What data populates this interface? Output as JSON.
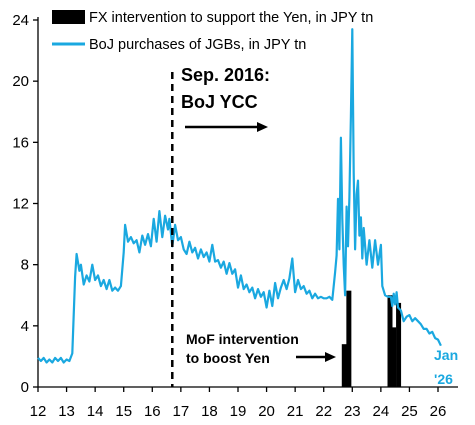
{
  "chart_data": {
    "type": "line",
    "x_ticks": [
      12,
      13,
      14,
      15,
      16,
      17,
      18,
      19,
      20,
      21,
      22,
      23,
      24,
      25,
      26
    ],
    "y_ticks": [
      0,
      4,
      8,
      12,
      16,
      20,
      24
    ],
    "xlim": [
      12,
      26.7
    ],
    "ylim": [
      0,
      24
    ],
    "grid": false,
    "legend_position": "top-left",
    "colors": {
      "boj": "#1aa8e0",
      "fx": "#000000"
    },
    "series": [
      {
        "name": "BoJ purchases of JGBs, in JPY tn",
        "type": "line",
        "points": [
          [
            12.0,
            1.9
          ],
          [
            12.1,
            1.7
          ],
          [
            12.2,
            1.9
          ],
          [
            12.3,
            1.6
          ],
          [
            12.4,
            1.8
          ],
          [
            12.5,
            1.6
          ],
          [
            12.6,
            1.9
          ],
          [
            12.7,
            1.7
          ],
          [
            12.8,
            1.9
          ],
          [
            12.9,
            1.6
          ],
          [
            13.0,
            1.8
          ],
          [
            13.1,
            1.7
          ],
          [
            13.2,
            2.2
          ],
          [
            13.3,
            7.2
          ],
          [
            13.35,
            8.7
          ],
          [
            13.45,
            7.6
          ],
          [
            13.5,
            8.0
          ],
          [
            13.6,
            6.7
          ],
          [
            13.7,
            7.3
          ],
          [
            13.8,
            6.9
          ],
          [
            13.9,
            8.0
          ],
          [
            14.0,
            7.0
          ],
          [
            14.1,
            7.3
          ],
          [
            14.2,
            6.6
          ],
          [
            14.3,
            7.0
          ],
          [
            14.4,
            6.4
          ],
          [
            14.5,
            7.0
          ],
          [
            14.6,
            6.3
          ],
          [
            14.7,
            6.5
          ],
          [
            14.8,
            6.3
          ],
          [
            14.9,
            6.6
          ],
          [
            15.0,
            8.8
          ],
          [
            15.05,
            10.6
          ],
          [
            15.15,
            9.5
          ],
          [
            15.25,
            9.8
          ],
          [
            15.35,
            9.4
          ],
          [
            15.45,
            9.6
          ],
          [
            15.55,
            8.8
          ],
          [
            15.65,
            9.9
          ],
          [
            15.75,
            9.3
          ],
          [
            15.85,
            10.0
          ],
          [
            15.95,
            9.2
          ],
          [
            16.05,
            11.0
          ],
          [
            16.15,
            9.5
          ],
          [
            16.25,
            11.5
          ],
          [
            16.35,
            9.8
          ],
          [
            16.45,
            11.2
          ],
          [
            16.55,
            10.3
          ],
          [
            16.6,
            11.0
          ],
          [
            16.7,
            9.2
          ],
          [
            16.8,
            10.6
          ],
          [
            16.9,
            9.6
          ],
          [
            17.0,
            9.8
          ],
          [
            17.1,
            9.0
          ],
          [
            17.2,
            8.7
          ],
          [
            17.3,
            9.5
          ],
          [
            17.4,
            8.8
          ],
          [
            17.5,
            9.1
          ],
          [
            17.6,
            8.4
          ],
          [
            17.7,
            9.0
          ],
          [
            17.8,
            8.5
          ],
          [
            17.9,
            8.8
          ],
          [
            18.0,
            8.2
          ],
          [
            18.1,
            9.3
          ],
          [
            18.2,
            8.2
          ],
          [
            18.3,
            8.3
          ],
          [
            18.4,
            7.8
          ],
          [
            18.5,
            8.2
          ],
          [
            18.6,
            7.4
          ],
          [
            18.7,
            8.1
          ],
          [
            18.8,
            7.4
          ],
          [
            18.9,
            7.7
          ],
          [
            19.0,
            6.5
          ],
          [
            19.1,
            7.3
          ],
          [
            19.2,
            6.4
          ],
          [
            19.3,
            6.7
          ],
          [
            19.4,
            6.2
          ],
          [
            19.5,
            6.5
          ],
          [
            19.6,
            5.8
          ],
          [
            19.7,
            6.4
          ],
          [
            19.8,
            5.9
          ],
          [
            19.9,
            6.2
          ],
          [
            20.0,
            5.2
          ],
          [
            20.1,
            6.3
          ],
          [
            20.2,
            5.3
          ],
          [
            20.3,
            6.8
          ],
          [
            20.4,
            5.8
          ],
          [
            20.5,
            6.5
          ],
          [
            20.6,
            7.0
          ],
          [
            20.7,
            6.4
          ],
          [
            20.8,
            7.1
          ],
          [
            20.9,
            8.4
          ],
          [
            21.0,
            6.2
          ],
          [
            21.1,
            7.0
          ],
          [
            21.2,
            6.4
          ],
          [
            21.3,
            6.6
          ],
          [
            21.4,
            6.1
          ],
          [
            21.5,
            6.3
          ],
          [
            21.6,
            5.8
          ],
          [
            21.7,
            6.1
          ],
          [
            21.8,
            5.8
          ],
          [
            21.9,
            5.9
          ],
          [
            22.0,
            5.8
          ],
          [
            22.1,
            5.8
          ],
          [
            22.2,
            5.9
          ],
          [
            22.3,
            5.7
          ],
          [
            22.4,
            7.5
          ],
          [
            22.45,
            8.6
          ],
          [
            22.5,
            12.3
          ],
          [
            22.55,
            9.0
          ],
          [
            22.6,
            16.3
          ],
          [
            22.65,
            11.0
          ],
          [
            22.7,
            8.0
          ],
          [
            22.75,
            6.0
          ],
          [
            22.8,
            11.8
          ],
          [
            22.85,
            9.2
          ],
          [
            22.9,
            12.4
          ],
          [
            22.95,
            17.7
          ],
          [
            23.0,
            23.4
          ],
          [
            23.05,
            14.0
          ],
          [
            23.1,
            9.0
          ],
          [
            23.15,
            12.6
          ],
          [
            23.2,
            13.5
          ],
          [
            23.25,
            9.9
          ],
          [
            23.3,
            11.1
          ],
          [
            23.35,
            8.4
          ],
          [
            23.4,
            10.4
          ],
          [
            23.5,
            8.0
          ],
          [
            23.6,
            9.6
          ],
          [
            23.7,
            7.8
          ],
          [
            23.8,
            9.6
          ],
          [
            23.9,
            8.0
          ],
          [
            24.0,
            9.3
          ],
          [
            24.05,
            6.6
          ],
          [
            24.15,
            6.0
          ],
          [
            24.25,
            5.9
          ],
          [
            24.35,
            5.9
          ],
          [
            24.4,
            5.3
          ],
          [
            24.45,
            6.1
          ],
          [
            24.5,
            5.4
          ],
          [
            24.55,
            6.2
          ],
          [
            24.6,
            5.2
          ],
          [
            24.7,
            5.0
          ],
          [
            24.8,
            4.3
          ],
          [
            24.9,
            4.6
          ],
          [
            25.0,
            4.7
          ],
          [
            25.1,
            4.3
          ],
          [
            25.2,
            4.5
          ],
          [
            25.3,
            4.3
          ],
          [
            25.4,
            4.1
          ],
          [
            25.5,
            3.8
          ],
          [
            25.6,
            3.8
          ],
          [
            25.7,
            3.5
          ],
          [
            25.8,
            3.6
          ],
          [
            25.9,
            3.2
          ],
          [
            26.0,
            3.1
          ],
          [
            26.1,
            2.7
          ]
        ]
      },
      {
        "name": "FX intervention to support the Yen, in JPY tn",
        "type": "bar",
        "points": [
          [
            22.72,
            2.8
          ],
          [
            22.88,
            6.3
          ],
          [
            24.32,
            6.0
          ],
          [
            24.45,
            3.9
          ],
          [
            24.62,
            5.5
          ]
        ]
      }
    ],
    "annotations": {
      "ycc_title": "Sep. 2016:",
      "ycc_subtitle": "BoJ YCC",
      "mof_line1": "MoF intervention",
      "mof_line2": "to boost Yen",
      "end_line1": "Jan",
      "end_line2": "'26",
      "ycc_x": 16.7
    }
  }
}
